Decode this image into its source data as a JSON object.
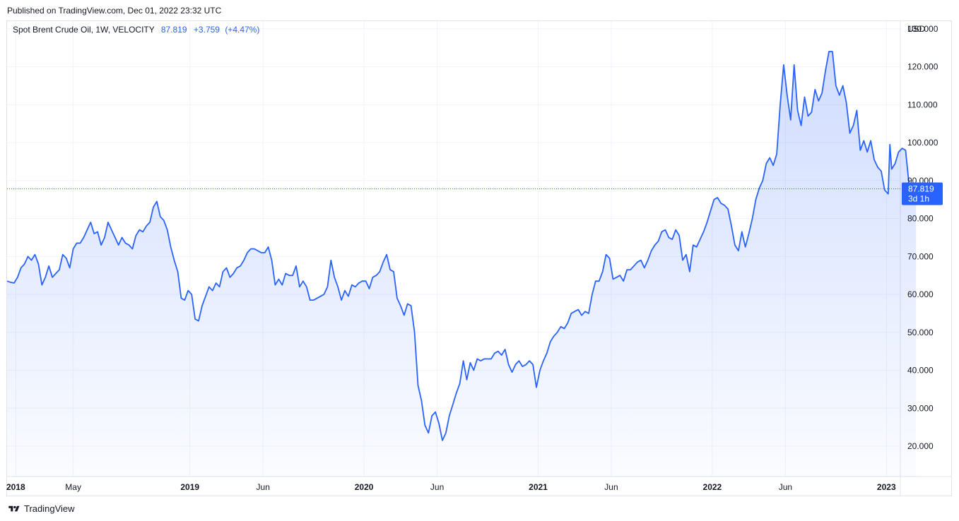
{
  "header": {
    "published": "Published on TradingView.com, Dec 01, 2022 23:32 UTC"
  },
  "legend": {
    "symbol": "Spot Brent Crude Oil, 1W, VELOCITY",
    "last": "87.819",
    "change": "+3.759",
    "change_pct": "(+4.47%)"
  },
  "price_label": {
    "value": "87.819",
    "countdown": "3d 1h"
  },
  "footer": {
    "brand": "TradingView",
    "logo_icon": "tradingview-logo-icon"
  },
  "colors": {
    "line": "#2962ff",
    "fill_top": "#2962ff",
    "grid": "#f0f3fa",
    "border": "#e0e3eb"
  },
  "chart_data": {
    "type": "area",
    "currency": "USD",
    "ylim": [
      12,
      132
    ],
    "yticks": [
      "130.000",
      "120.000",
      "110.000",
      "100.000",
      "90.000",
      "80.000",
      "70.000",
      "60.000",
      "50.000",
      "40.000",
      "30.000",
      "20.000"
    ],
    "xlim": [
      2017.95,
      2023.08
    ],
    "xticks": [
      {
        "label": "2018",
        "pos": 2018.0,
        "bold": true
      },
      {
        "label": "May",
        "pos": 2018.33,
        "bold": false
      },
      {
        "label": "2019",
        "pos": 2019.0,
        "bold": true
      },
      {
        "label": "Jun",
        "pos": 2019.42,
        "bold": false
      },
      {
        "label": "2020",
        "pos": 2020.0,
        "bold": true
      },
      {
        "label": "Jun",
        "pos": 2020.42,
        "bold": false
      },
      {
        "label": "2021",
        "pos": 2021.0,
        "bold": true
      },
      {
        "label": "Jun",
        "pos": 2021.42,
        "bold": false
      },
      {
        "label": "2022",
        "pos": 2022.0,
        "bold": true
      },
      {
        "label": "Jun",
        "pos": 2022.42,
        "bold": false
      },
      {
        "label": "2023",
        "pos": 2023.0,
        "bold": true
      }
    ],
    "grid": true,
    "series": [
      {
        "values": [
          [
            2017.95,
            63.5
          ],
          [
            2017.97,
            63.2
          ],
          [
            2017.99,
            63.0
          ],
          [
            2018.01,
            64.5
          ],
          [
            2018.03,
            67.0
          ],
          [
            2018.05,
            68.0
          ],
          [
            2018.07,
            70.0
          ],
          [
            2018.09,
            69.0
          ],
          [
            2018.11,
            70.5
          ],
          [
            2018.13,
            68.0
          ],
          [
            2018.15,
            62.5
          ],
          [
            2018.17,
            64.5
          ],
          [
            2018.19,
            67.5
          ],
          [
            2018.21,
            64.5
          ],
          [
            2018.23,
            65.5
          ],
          [
            2018.25,
            66.5
          ],
          [
            2018.27,
            70.5
          ],
          [
            2018.29,
            69.5
          ],
          [
            2018.31,
            67.0
          ],
          [
            2018.33,
            72.0
          ],
          [
            2018.35,
            73.5
          ],
          [
            2018.37,
            73.5
          ],
          [
            2018.39,
            75.0
          ],
          [
            2018.41,
            77.0
          ],
          [
            2018.43,
            79.0
          ],
          [
            2018.45,
            76.0
          ],
          [
            2018.47,
            76.5
          ],
          [
            2018.49,
            73.0
          ],
          [
            2018.51,
            75.0
          ],
          [
            2018.53,
            79.0
          ],
          [
            2018.55,
            77.0
          ],
          [
            2018.57,
            75.0
          ],
          [
            2018.59,
            73.0
          ],
          [
            2018.61,
            75.0
          ],
          [
            2018.63,
            73.5
          ],
          [
            2018.65,
            73.0
          ],
          [
            2018.67,
            72.0
          ],
          [
            2018.69,
            75.5
          ],
          [
            2018.71,
            77.0
          ],
          [
            2018.73,
            76.5
          ],
          [
            2018.75,
            78.0
          ],
          [
            2018.77,
            79.0
          ],
          [
            2018.79,
            83.0
          ],
          [
            2018.81,
            84.5
          ],
          [
            2018.83,
            80.5
          ],
          [
            2018.85,
            79.5
          ],
          [
            2018.87,
            77.0
          ],
          [
            2018.89,
            72.5
          ],
          [
            2018.91,
            69.0
          ],
          [
            2018.93,
            66.0
          ],
          [
            2018.95,
            59.0
          ],
          [
            2018.97,
            58.5
          ],
          [
            2018.99,
            61.0
          ],
          [
            2019.01,
            60.0
          ],
          [
            2019.03,
            53.5
          ],
          [
            2019.05,
            53.0
          ],
          [
            2019.07,
            57.0
          ],
          [
            2019.09,
            59.5
          ],
          [
            2019.11,
            62.0
          ],
          [
            2019.13,
            61.0
          ],
          [
            2019.15,
            63.0
          ],
          [
            2019.17,
            62.0
          ],
          [
            2019.19,
            66.0
          ],
          [
            2019.21,
            67.0
          ],
          [
            2019.23,
            64.5
          ],
          [
            2019.25,
            65.5
          ],
          [
            2019.27,
            67.0
          ],
          [
            2019.29,
            67.5
          ],
          [
            2019.31,
            69.0
          ],
          [
            2019.33,
            71.0
          ],
          [
            2019.35,
            72.0
          ],
          [
            2019.37,
            72.0
          ],
          [
            2019.39,
            71.5
          ],
          [
            2019.41,
            71.0
          ],
          [
            2019.43,
            71.0
          ],
          [
            2019.45,
            72.5
          ],
          [
            2019.47,
            69.0
          ],
          [
            2019.49,
            62.5
          ],
          [
            2019.51,
            64.0
          ],
          [
            2019.53,
            62.5
          ],
          [
            2019.55,
            65.5
          ],
          [
            2019.57,
            65.0
          ],
          [
            2019.59,
            65.0
          ],
          [
            2019.61,
            67.5
          ],
          [
            2019.63,
            62.0
          ],
          [
            2019.65,
            63.5
          ],
          [
            2019.67,
            62.0
          ],
          [
            2019.69,
            58.5
          ],
          [
            2019.71,
            58.5
          ],
          [
            2019.73,
            59.0
          ],
          [
            2019.75,
            59.5
          ],
          [
            2019.77,
            60.0
          ],
          [
            2019.79,
            62.0
          ],
          [
            2019.81,
            69.0
          ],
          [
            2019.83,
            64.5
          ],
          [
            2019.85,
            62.0
          ],
          [
            2019.87,
            58.5
          ],
          [
            2019.89,
            61.0
          ],
          [
            2019.91,
            59.5
          ],
          [
            2019.93,
            62.5
          ],
          [
            2019.95,
            62.0
          ],
          [
            2019.97,
            63.0
          ],
          [
            2019.99,
            63.5
          ],
          [
            2020.01,
            63.5
          ],
          [
            2020.03,
            61.5
          ],
          [
            2020.05,
            64.5
          ],
          [
            2020.07,
            65.0
          ],
          [
            2020.09,
            66.0
          ],
          [
            2020.11,
            68.5
          ],
          [
            2020.13,
            70.5
          ],
          [
            2020.15,
            66.5
          ],
          [
            2020.17,
            66.0
          ],
          [
            2020.19,
            59.0
          ],
          [
            2020.21,
            57.0
          ],
          [
            2020.23,
            54.5
          ],
          [
            2020.25,
            57.5
          ],
          [
            2020.27,
            57.0
          ],
          [
            2020.29,
            50.0
          ],
          [
            2020.31,
            36.0
          ],
          [
            2020.33,
            32.0
          ],
          [
            2020.35,
            25.5
          ],
          [
            2020.37,
            23.5
          ],
          [
            2020.39,
            28.0
          ],
          [
            2020.41,
            29.0
          ],
          [
            2020.43,
            26.0
          ],
          [
            2020.45,
            21.5
          ],
          [
            2020.47,
            23.5
          ],
          [
            2020.49,
            28.0
          ],
          [
            2020.51,
            31.0
          ],
          [
            2020.53,
            34.0
          ],
          [
            2020.55,
            36.5
          ],
          [
            2020.57,
            42.5
          ],
          [
            2020.59,
            37.5
          ],
          [
            2020.61,
            42.0
          ],
          [
            2020.63,
            40.0
          ],
          [
            2020.65,
            43.0
          ],
          [
            2020.67,
            42.5
          ],
          [
            2020.69,
            43.0
          ],
          [
            2020.71,
            43.0
          ],
          [
            2020.73,
            43.0
          ],
          [
            2020.75,
            44.5
          ],
          [
            2020.77,
            45.0
          ],
          [
            2020.79,
            44.0
          ],
          [
            2020.81,
            45.5
          ],
          [
            2020.83,
            41.5
          ],
          [
            2020.85,
            39.5
          ],
          [
            2020.87,
            41.5
          ],
          [
            2020.89,
            42.5
          ],
          [
            2020.91,
            41.0
          ],
          [
            2020.93,
            41.5
          ],
          [
            2020.95,
            42.5
          ],
          [
            2020.97,
            41.5
          ],
          [
            2020.99,
            35.5
          ],
          [
            2021.01,
            40.0
          ],
          [
            2021.03,
            42.5
          ],
          [
            2021.05,
            44.5
          ],
          [
            2021.07,
            47.5
          ],
          [
            2021.09,
            49.0
          ],
          [
            2021.11,
            50.0
          ],
          [
            2021.13,
            51.5
          ],
          [
            2021.15,
            51.0
          ],
          [
            2021.17,
            52.5
          ],
          [
            2021.19,
            55.0
          ],
          [
            2021.21,
            55.5
          ],
          [
            2021.23,
            56.0
          ],
          [
            2021.25,
            54.5
          ],
          [
            2021.27,
            55.5
          ],
          [
            2021.29,
            55.0
          ],
          [
            2021.31,
            60.0
          ],
          [
            2021.33,
            63.5
          ],
          [
            2021.35,
            63.5
          ],
          [
            2021.37,
            66.0
          ],
          [
            2021.39,
            70.5
          ],
          [
            2021.41,
            69.5
          ],
          [
            2021.43,
            64.0
          ],
          [
            2021.45,
            64.5
          ],
          [
            2021.47,
            65.0
          ],
          [
            2021.49,
            63.5
          ],
          [
            2021.51,
            66.5
          ],
          [
            2021.53,
            66.5
          ],
          [
            2021.55,
            67.5
          ],
          [
            2021.57,
            68.5
          ],
          [
            2021.59,
            69.0
          ],
          [
            2021.61,
            67.0
          ],
          [
            2021.63,
            69.0
          ],
          [
            2021.65,
            71.5
          ],
          [
            2021.67,
            73.0
          ],
          [
            2021.69,
            74.0
          ],
          [
            2021.71,
            76.5
          ],
          [
            2021.73,
            77.0
          ],
          [
            2021.75,
            75.0
          ],
          [
            2021.77,
            74.5
          ],
          [
            2021.79,
            77.0
          ],
          [
            2021.81,
            75.5
          ],
          [
            2021.83,
            69.0
          ],
          [
            2021.85,
            70.5
          ],
          [
            2021.87,
            66.0
          ],
          [
            2021.89,
            73.0
          ],
          [
            2021.91,
            72.5
          ],
          [
            2021.93,
            74.5
          ],
          [
            2021.95,
            76.5
          ],
          [
            2021.97,
            79.0
          ],
          [
            2021.99,
            82.0
          ],
          [
            2022.01,
            85.0
          ],
          [
            2022.03,
            85.5
          ],
          [
            2022.05,
            84.0
          ],
          [
            2022.07,
            83.5
          ],
          [
            2022.09,
            82.5
          ],
          [
            2022.11,
            78.0
          ],
          [
            2022.13,
            73.0
          ],
          [
            2022.15,
            71.5
          ],
          [
            2022.17,
            76.5
          ],
          [
            2022.19,
            72.5
          ],
          [
            2022.21,
            76.0
          ],
          [
            2022.23,
            80.0
          ],
          [
            2022.25,
            85.0
          ],
          [
            2022.27,
            88.0
          ],
          [
            2022.29,
            90.0
          ],
          [
            2022.31,
            94.5
          ],
          [
            2022.33,
            96.0
          ],
          [
            2022.35,
            94.0
          ],
          [
            2022.37,
            97.0
          ],
          [
            2022.39,
            110.0
          ],
          [
            2022.41,
            120.5
          ],
          [
            2022.43,
            112.5
          ],
          [
            2022.45,
            106.0
          ],
          [
            2022.47,
            120.5
          ],
          [
            2022.49,
            108.5
          ],
          [
            2022.51,
            104.5
          ],
          [
            2022.53,
            112.0
          ],
          [
            2022.55,
            107.0
          ],
          [
            2022.57,
            108.0
          ],
          [
            2022.59,
            114.0
          ],
          [
            2022.61,
            111.0
          ],
          [
            2022.63,
            113.0
          ],
          [
            2022.65,
            119.0
          ],
          [
            2022.67,
            124.0
          ],
          [
            2022.69,
            124.0
          ],
          [
            2022.71,
            115.0
          ],
          [
            2022.73,
            112.5
          ],
          [
            2022.75,
            115.0
          ],
          [
            2022.77,
            110.5
          ],
          [
            2022.79,
            102.5
          ],
          [
            2022.81,
            104.5
          ],
          [
            2022.83,
            108.5
          ],
          [
            2022.85,
            98.0
          ],
          [
            2022.87,
            100.5
          ],
          [
            2022.89,
            97.5
          ],
          [
            2022.91,
            100.5
          ],
          [
            2022.93,
            95.5
          ],
          [
            2022.95,
            93.5
          ],
          [
            2022.97,
            92.5
          ],
          [
            2022.99,
            87.5
          ],
          [
            2023.01,
            86.5
          ],
          [
            2023.02,
            99.5
          ],
          [
            2023.03,
            93.0
          ],
          [
            2023.05,
            94.5
          ],
          [
            2023.07,
            97.5
          ],
          [
            2023.09,
            98.5
          ],
          [
            2023.11,
            98.0
          ],
          [
            2023.13,
            89.0
          ],
          [
            2023.15,
            84.0
          ],
          [
            2023.17,
            87.8
          ]
        ]
      }
    ]
  }
}
